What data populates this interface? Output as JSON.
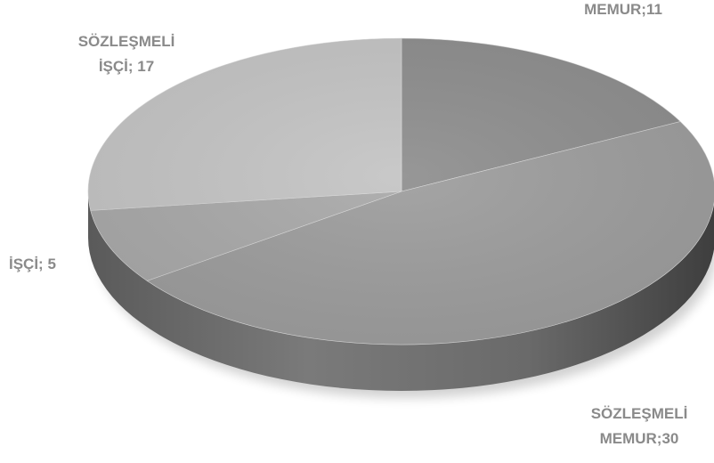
{
  "chart_data": {
    "type": "pie",
    "title": "",
    "categories": [
      "MEMUR",
      "SÖZLEŞMELİ MEMUR",
      "İŞÇİ",
      "SÖZLEŞMELİ İŞÇİ"
    ],
    "values": [
      11,
      30,
      5,
      17
    ],
    "labels": [
      [
        "MEMUR;11"
      ],
      [
        "SÖZLEŞMELİ",
        "MEMUR;30"
      ],
      [
        "İŞÇİ; 5"
      ],
      [
        "SÖZLEŞMELİ",
        "İŞÇİ; 17"
      ]
    ],
    "colors": [
      "#8e8e8e",
      "#9d9d9d",
      "#a9a9a9",
      "#c4c4c4"
    ],
    "label_color": "#8a8a8a",
    "style": "3d-tilted",
    "legend": "none"
  }
}
